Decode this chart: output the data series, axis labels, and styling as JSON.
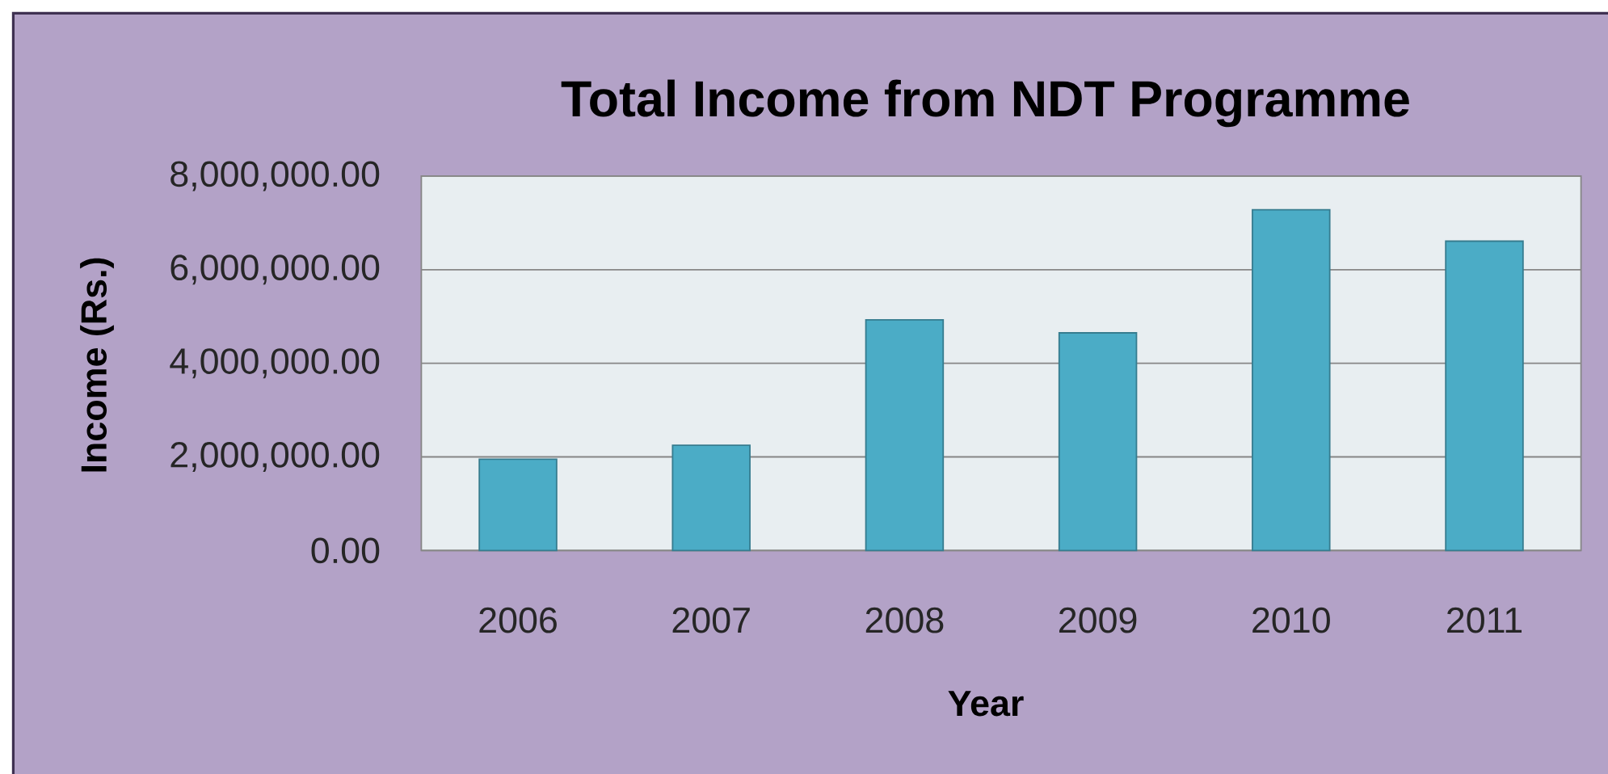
{
  "chart_data": {
    "type": "bar",
    "title": "Total Income from NDT Programme",
    "xlabel": "Year",
    "ylabel": "Income (Rs.)",
    "categories": [
      "2006",
      "2007",
      "2008",
      "2009",
      "2010",
      "2011"
    ],
    "values": [
      1950000,
      2250000,
      4930000,
      4650000,
      7280000,
      6610000
    ],
    "color": "#4bacc6",
    "ylim": [
      0,
      8000000
    ],
    "yticks": [
      {
        "value": 0,
        "label": "0.00"
      },
      {
        "value": 2000000,
        "label": "2,000,000.00"
      },
      {
        "value": 4000000,
        "label": "4,000,000.00"
      },
      {
        "value": 6000000,
        "label": "6,000,000.00"
      },
      {
        "value": 8000000,
        "label": "8,000,000.00"
      }
    ],
    "grid": "y"
  }
}
